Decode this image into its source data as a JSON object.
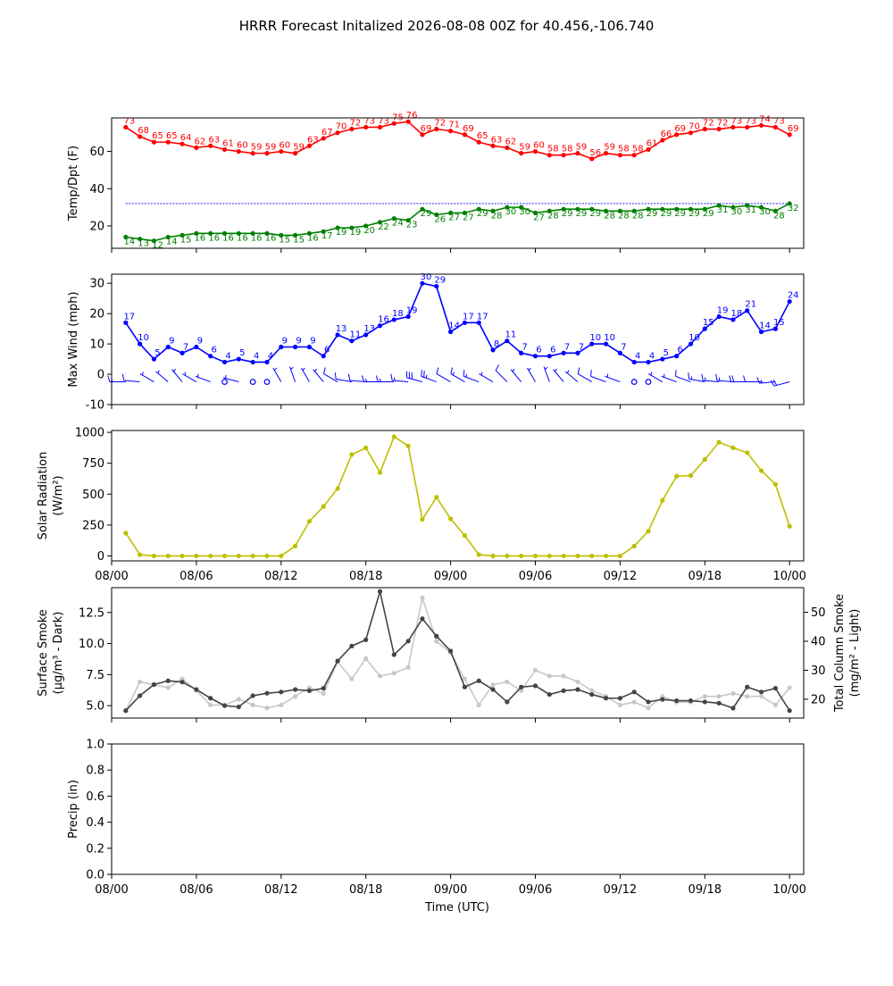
{
  "title": "HRRR Forecast Initalized 2026-08-08 00Z for 40.456,-106.740",
  "xlabel": "Time (UTC)",
  "x_tick_labels": [
    "08/00",
    "08/06",
    "08/12",
    "08/18",
    "09/00",
    "09/06",
    "09/12",
    "09/18",
    "10/00"
  ],
  "x_tick_hours": [
    0,
    6,
    12,
    18,
    24,
    30,
    36,
    42,
    48
  ],
  "x_range_hours": [
    0,
    49
  ],
  "chart_data": [
    {
      "type": "line",
      "ylabel": "Temp/Dpt (F)",
      "ylim": [
        8,
        78
      ],
      "yticks": [
        20,
        40,
        60
      ],
      "x_hours": [
        1,
        2,
        3,
        4,
        5,
        6,
        7,
        8,
        9,
        10,
        11,
        12,
        13,
        14,
        15,
        16,
        17,
        18,
        19,
        20,
        21,
        22,
        23,
        24,
        25,
        26,
        27,
        28,
        29,
        30,
        31,
        32,
        33,
        34,
        35,
        36,
        37,
        38,
        39,
        40,
        41,
        42,
        43,
        44,
        45,
        46,
        47,
        48
      ],
      "reference_line": 32,
      "series": [
        {
          "values": [
            73,
            68,
            65,
            65,
            64,
            62,
            63,
            61,
            60,
            59,
            59,
            60,
            59,
            63,
            67,
            70,
            72,
            73,
            73,
            75,
            76,
            69,
            72,
            71,
            69,
            65,
            63,
            62,
            59,
            60,
            58,
            58,
            59,
            56,
            59,
            58,
            58,
            61,
            66,
            69,
            70,
            72,
            72,
            73,
            73,
            74,
            73,
            69
          ],
          "color": "#ff0000"
        },
        {
          "values": [
            14,
            13,
            12,
            14,
            15,
            16,
            16,
            16,
            16,
            16,
            16,
            15,
            15,
            16,
            17,
            19,
            19,
            20,
            22,
            24,
            23,
            29,
            26,
            27,
            27,
            29,
            28,
            30,
            30,
            27,
            28,
            29,
            29,
            29,
            28,
            28,
            28,
            29,
            29,
            29,
            29,
            29,
            31,
            30,
            31,
            30,
            28,
            32
          ],
          "color": "#008000"
        }
      ]
    },
    {
      "type": "line",
      "ylabel": "Max Wind (mph)",
      "ylim": [
        -10,
        33
      ],
      "yticks": [
        -10,
        0,
        10,
        20,
        30
      ],
      "x_hours": [
        1,
        2,
        3,
        4,
        5,
        6,
        7,
        8,
        9,
        10,
        11,
        12,
        13,
        14,
        15,
        16,
        17,
        18,
        19,
        20,
        21,
        22,
        23,
        24,
        25,
        26,
        27,
        28,
        29,
        30,
        31,
        32,
        33,
        34,
        35,
        36,
        37,
        38,
        39,
        40,
        41,
        42,
        43,
        44,
        45,
        46,
        47,
        48
      ],
      "series": [
        {
          "values": [
            17,
            10,
            5,
            9,
            7,
            9,
            6,
            4,
            5,
            4,
            4,
            9,
            9,
            9,
            6,
            13,
            11,
            13,
            16,
            18,
            19,
            30,
            29,
            14,
            17,
            17,
            8,
            11,
            7,
            6,
            6,
            7,
            7,
            10,
            10,
            7,
            4,
            4,
            5,
            6,
            10,
            15,
            19,
            18,
            21,
            14,
            15,
            24
          ],
          "color": "#0000ff"
        }
      ],
      "wind_barbs": {
        "color": "#0000ff",
        "speed_source": "values",
        "direction_deg": [
          270,
          275,
          300,
          310,
          320,
          300,
          290,
          280,
          285,
          300,
          310,
          330,
          340,
          330,
          320,
          300,
          280,
          275,
          270,
          270,
          275,
          285,
          290,
          300,
          300,
          290,
          300,
          315,
          320,
          330,
          340,
          320,
          310,
          300,
          290,
          290,
          300,
          310,
          300,
          290,
          290,
          280,
          275,
          275,
          270,
          270,
          265,
          255
        ]
      }
    },
    {
      "type": "line",
      "ylabel": "Solar Radiation (W/m²)",
      "ylim": [
        -40,
        1015
      ],
      "yticks": [
        0,
        250,
        500,
        750,
        1000
      ],
      "x_hours": [
        1,
        2,
        3,
        4,
        5,
        6,
        7,
        8,
        9,
        10,
        11,
        12,
        13,
        14,
        15,
        16,
        17,
        18,
        19,
        20,
        21,
        22,
        23,
        24,
        25,
        26,
        27,
        28,
        29,
        30,
        31,
        32,
        33,
        34,
        35,
        36,
        37,
        38,
        39,
        40,
        41,
        42,
        43,
        44,
        45,
        46,
        47,
        48
      ],
      "series": [
        {
          "values": [
            185,
            10,
            0,
            0,
            0,
            0,
            0,
            0,
            0,
            0,
            0,
            0,
            80,
            280,
            400,
            545,
            820,
            875,
            675,
            965,
            890,
            295,
            475,
            300,
            165,
            10,
            0,
            0,
            0,
            0,
            0,
            0,
            0,
            0,
            0,
            0,
            80,
            200,
            450,
            645,
            650,
            780,
            920,
            875,
            835,
            690,
            580,
            240
          ],
          "color": "#bfbf00"
        }
      ]
    },
    {
      "type": "line",
      "ylabel": "Surface Smoke (µg/m³ - Dark)",
      "ylabel_right": "Total Column Smoke (mg/m² - Light)",
      "ylim": [
        4.0,
        14.5
      ],
      "yticks": [
        5.0,
        7.5,
        10.0,
        12.5
      ],
      "ylim_right": [
        13.5,
        58.5
      ],
      "yticks_right": [
        20,
        30,
        40,
        50
      ],
      "x_hours": [
        1,
        2,
        3,
        4,
        5,
        6,
        7,
        8,
        9,
        10,
        11,
        12,
        13,
        14,
        15,
        16,
        17,
        18,
        19,
        20,
        21,
        22,
        23,
        24,
        25,
        26,
        27,
        28,
        29,
        30,
        31,
        32,
        33,
        34,
        35,
        36,
        37,
        38,
        39,
        40,
        41,
        42,
        43,
        44,
        45,
        46,
        47,
        48
      ],
      "series": [
        {
          "values": [
            4.6,
            5.8,
            6.7,
            7.0,
            6.9,
            6.3,
            5.6,
            5.0,
            4.9,
            5.8,
            6.0,
            6.1,
            6.3,
            6.2,
            6.4,
            8.6,
            9.8,
            10.3,
            14.2,
            9.1,
            10.2,
            12.0,
            10.6,
            9.4,
            6.5,
            7.0,
            6.3,
            5.3,
            6.5,
            6.6,
            5.9,
            6.2,
            6.3,
            5.9,
            5.6,
            5.6,
            6.1,
            5.3,
            5.5,
            5.4,
            5.4,
            5.3,
            5.2,
            4.8,
            6.5,
            6.1,
            6.4,
            4.6
          ],
          "color": "#444444"
        },
        {
          "values": [
            16,
            26,
            25,
            24,
            27,
            23,
            18,
            18,
            20,
            18,
            17,
            18,
            21,
            24,
            22,
            33,
            27,
            34,
            28,
            29,
            31,
            55,
            40,
            36,
            27,
            18,
            25,
            26,
            23,
            30,
            28,
            28,
            26,
            23,
            21,
            18,
            19,
            17,
            21,
            19,
            19,
            21,
            21,
            22,
            21,
            21,
            18,
            24
          ],
          "color": "#c8c8c8",
          "axis": "right"
        }
      ]
    },
    {
      "type": "line",
      "ylabel": "Precip (in)",
      "ylim": [
        0.0,
        1.0
      ],
      "yticks": [
        0.0,
        0.2,
        0.4,
        0.6,
        0.8,
        1.0
      ],
      "x_hours": [],
      "series": []
    }
  ]
}
